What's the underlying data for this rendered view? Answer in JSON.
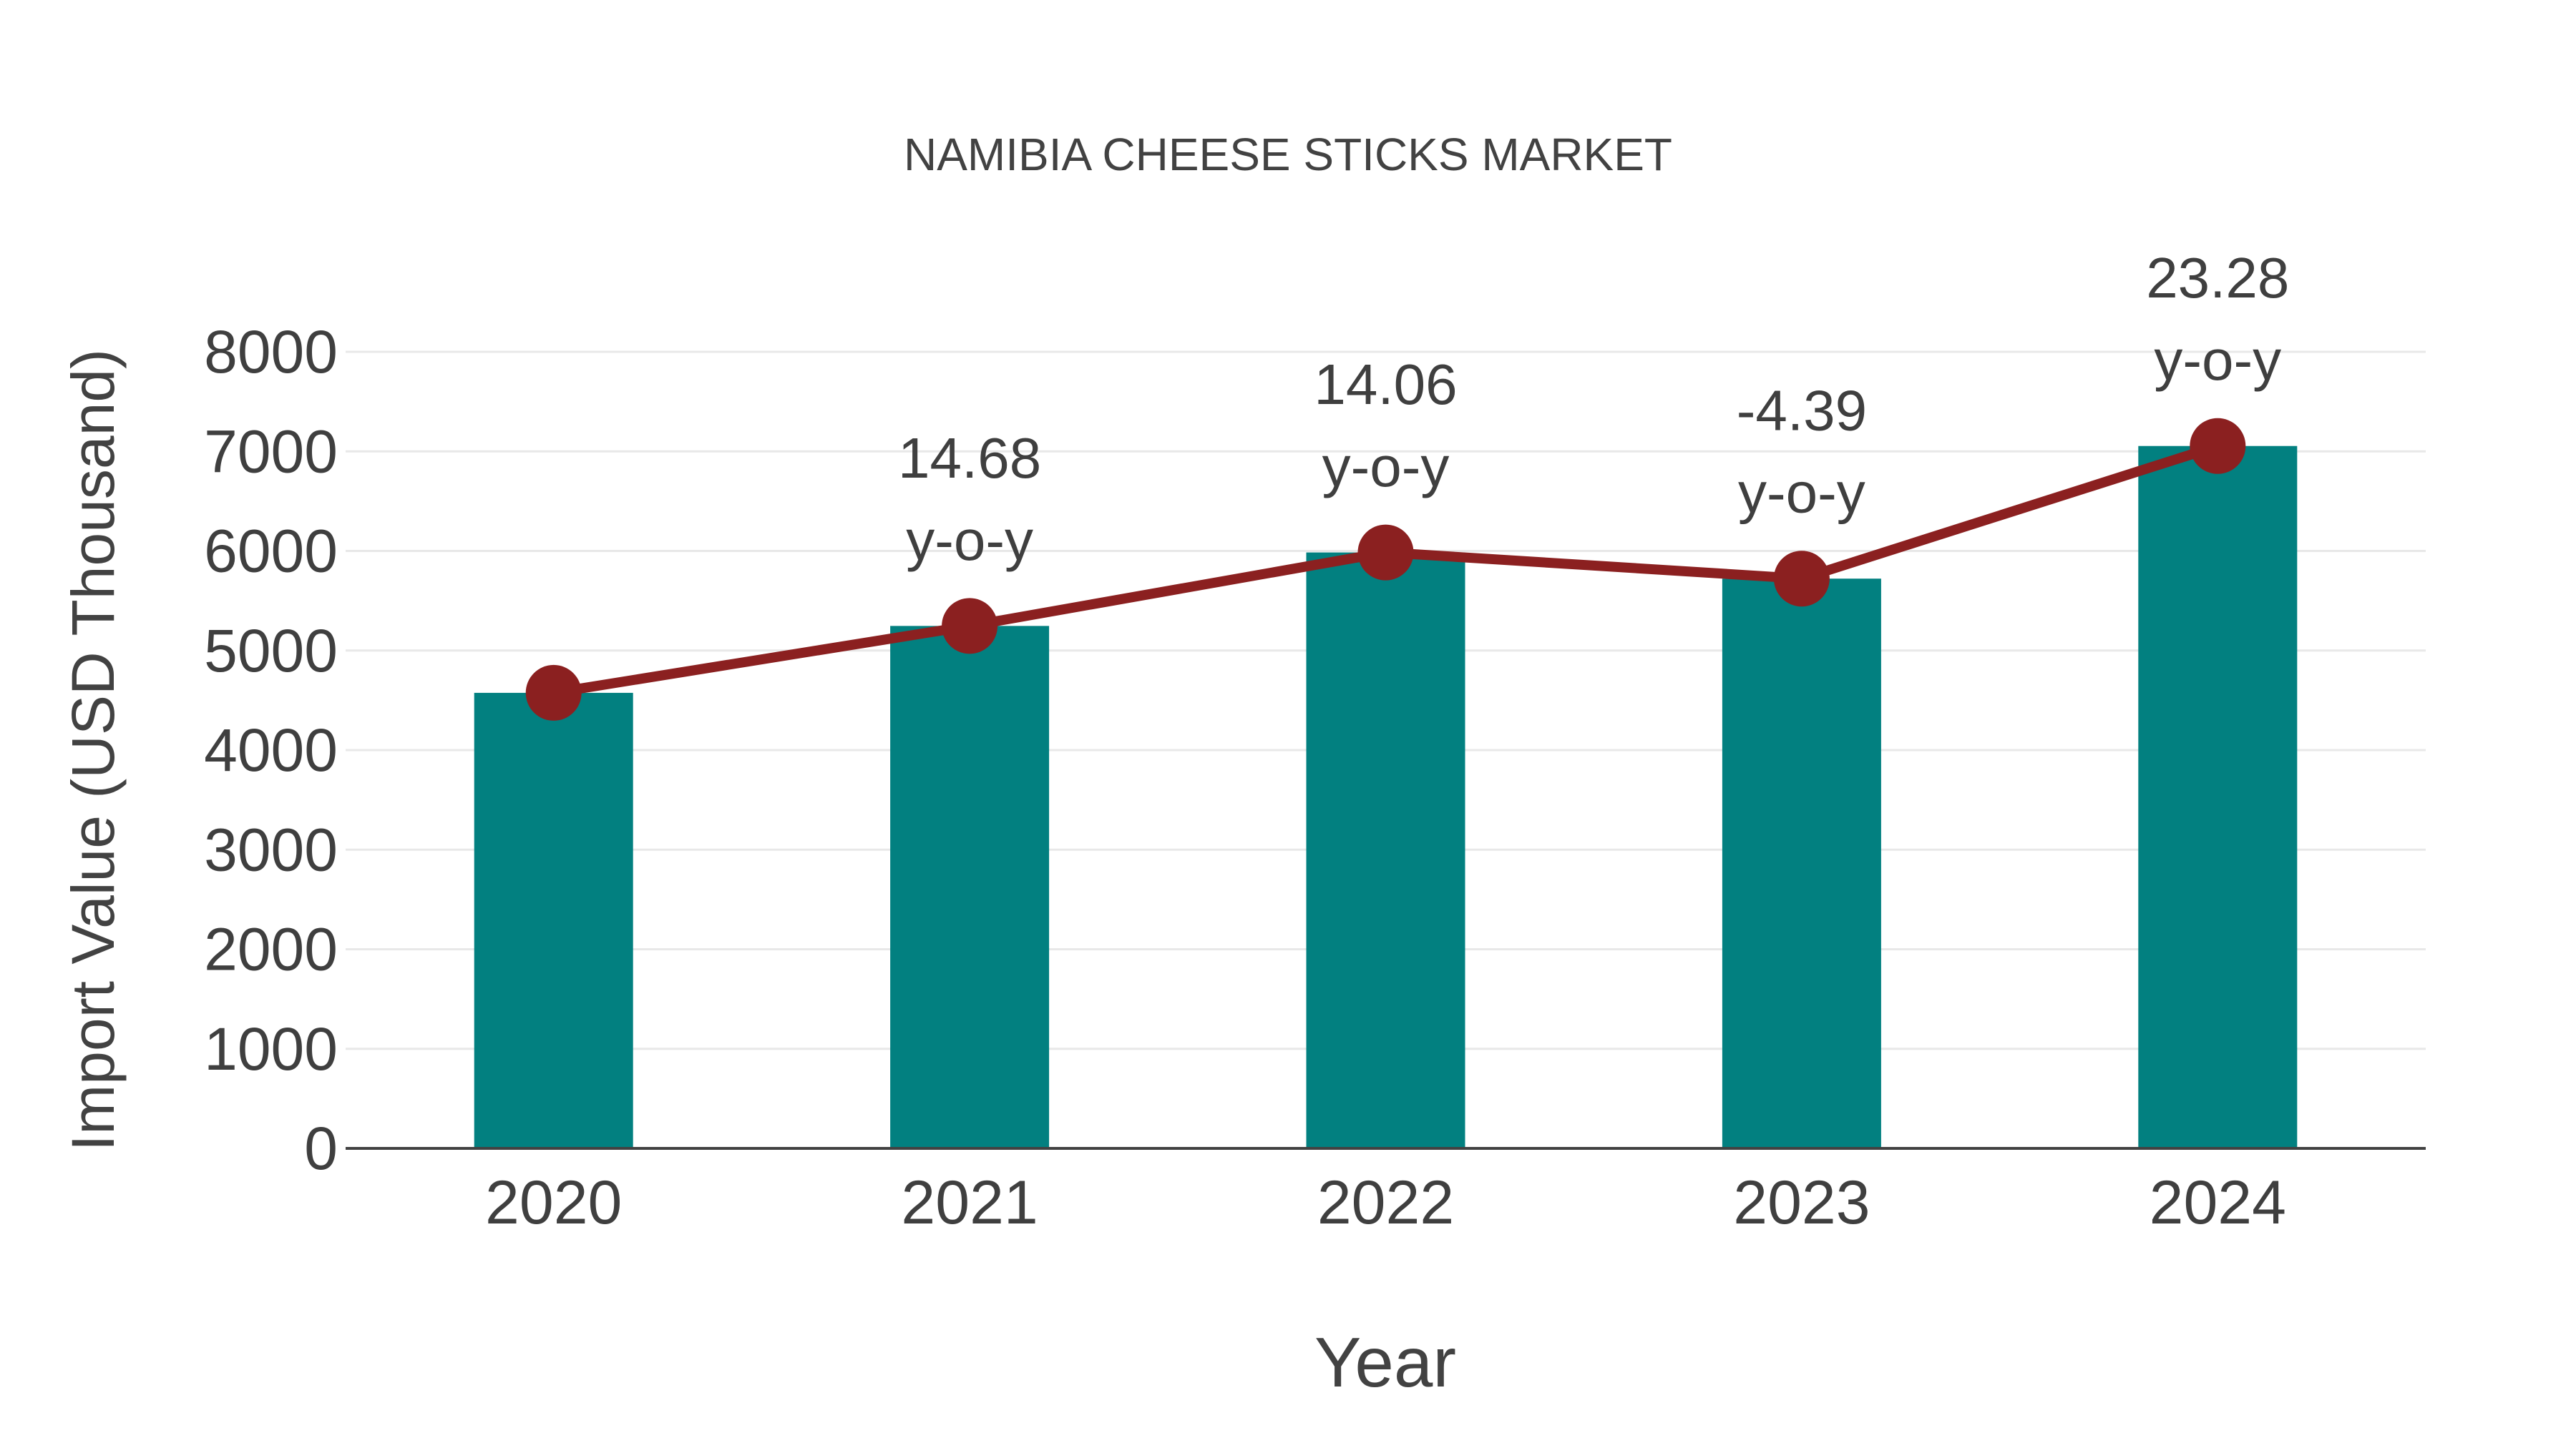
{
  "chart_data": {
    "type": "bar",
    "title": "NAMIBIA CHEESE STICKS MARKET",
    "xlabel": "Year",
    "ylabel": "Import Value (USD Thousand)",
    "categories": [
      "2020",
      "2021",
      "2022",
      "2023",
      "2024"
    ],
    "series": [
      {
        "name": "Import Value (bar)",
        "type": "bar",
        "values": [
          4575,
          5247,
          5985,
          5722,
          7054
        ]
      },
      {
        "name": "Import Value (line)",
        "type": "line",
        "values": [
          4575,
          5247,
          5985,
          5722,
          7054
        ]
      }
    ],
    "annotations": [
      {
        "category": "2021",
        "line1": "14.68",
        "line2": "y-o-y"
      },
      {
        "category": "2022",
        "line1": "14.06",
        "line2": "y-o-y"
      },
      {
        "category": "2023",
        "line1": "-4.39",
        "line2": "y-o-y"
      },
      {
        "category": "2024",
        "line1": "23.28",
        "line2": "y-o-y"
      }
    ],
    "ylim": [
      0,
      8000
    ],
    "ytick_step": 1000,
    "grid": true,
    "legend_position": "none",
    "colors": {
      "bar": "#028080",
      "line": "#8B2020",
      "marker": "#8B2020",
      "grid": "#E8E8E8",
      "axis_line": "#424242",
      "tick_text": "#3F3F3F",
      "title_text": "#424242"
    }
  }
}
